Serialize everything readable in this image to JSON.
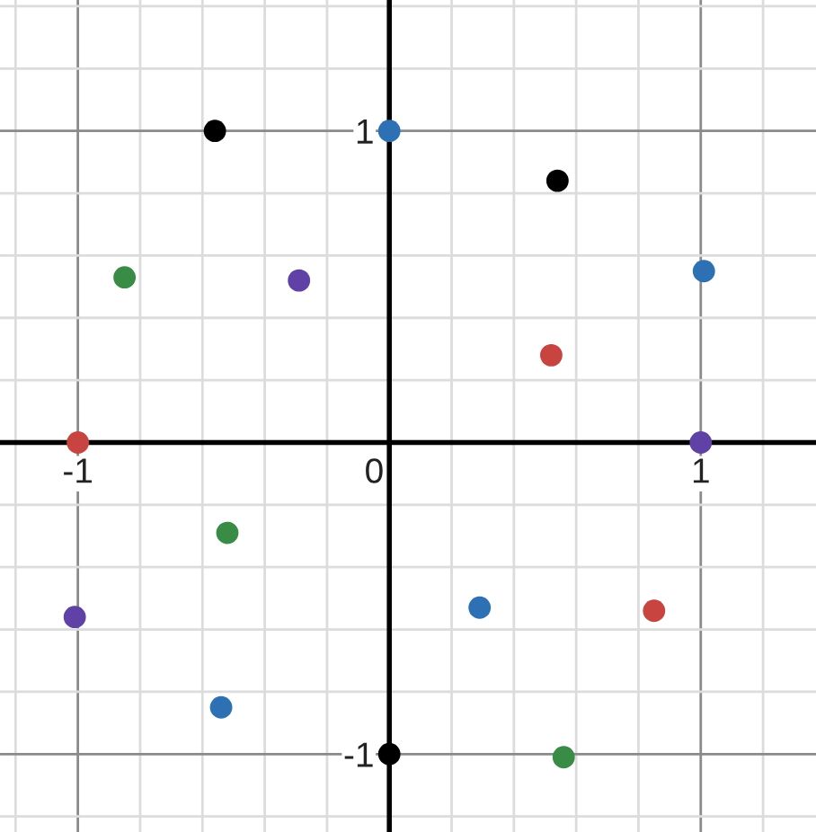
{
  "chart_data": {
    "type": "scatter",
    "xlim": [
      -1.25,
      1.37
    ],
    "ylim": [
      -1.25,
      1.42
    ],
    "xticks": [
      {
        "value": -1.2,
        "label": null
      },
      -1,
      {
        "value": -0.8,
        "label": null
      },
      {
        "value": -0.6,
        "label": null
      },
      {
        "value": -0.4,
        "label": null
      },
      {
        "value": -0.2,
        "label": null
      },
      0,
      {
        "value": 0.2,
        "label": null
      },
      {
        "value": 0.4,
        "label": null
      },
      {
        "value": 0.6,
        "label": null
      },
      {
        "value": 0.8,
        "label": null
      },
      1,
      {
        "value": 1.2,
        "label": null
      }
    ],
    "yticks": [
      {
        "value": -1.2,
        "label": null
      },
      -1,
      {
        "value": -0.8,
        "label": null
      },
      {
        "value": -0.6,
        "label": null
      },
      {
        "value": -0.4,
        "label": null
      },
      {
        "value": -0.2,
        "label": null
      },
      {
        "value": 0,
        "label": null
      },
      {
        "value": 0.2,
        "label": null
      },
      {
        "value": 0.4,
        "label": null
      },
      {
        "value": 0.6,
        "label": null
      },
      {
        "value": 0.8,
        "label": null
      },
      1,
      {
        "value": 1.2,
        "label": null
      },
      {
        "value": 1.4,
        "label": null
      }
    ],
    "grid": true,
    "marker": "circle",
    "series": [
      {
        "color": "#000000",
        "x": [
          -0.56,
          0.54,
          0
        ],
        "values": [
          1.0,
          0.84,
          -1.0
        ]
      },
      {
        "color": "#2d70b3",
        "x": [
          0,
          1.01,
          0.29,
          -0.54
        ],
        "values": [
          1.0,
          0.55,
          -0.53,
          -0.85
        ]
      },
      {
        "color": "#388c46",
        "x": [
          -0.85,
          -0.52,
          0.56
        ],
        "values": [
          0.53,
          -0.29,
          -1.01
        ]
      },
      {
        "color": "#6042a6",
        "x": [
          -0.29,
          1.0,
          -1.01
        ],
        "values": [
          0.52,
          0.0,
          -0.56
        ]
      },
      {
        "color": "#c74440",
        "x": [
          0.52,
          -1.0,
          0.85
        ],
        "values": [
          0.28,
          0.0,
          -0.54
        ]
      }
    ]
  }
}
